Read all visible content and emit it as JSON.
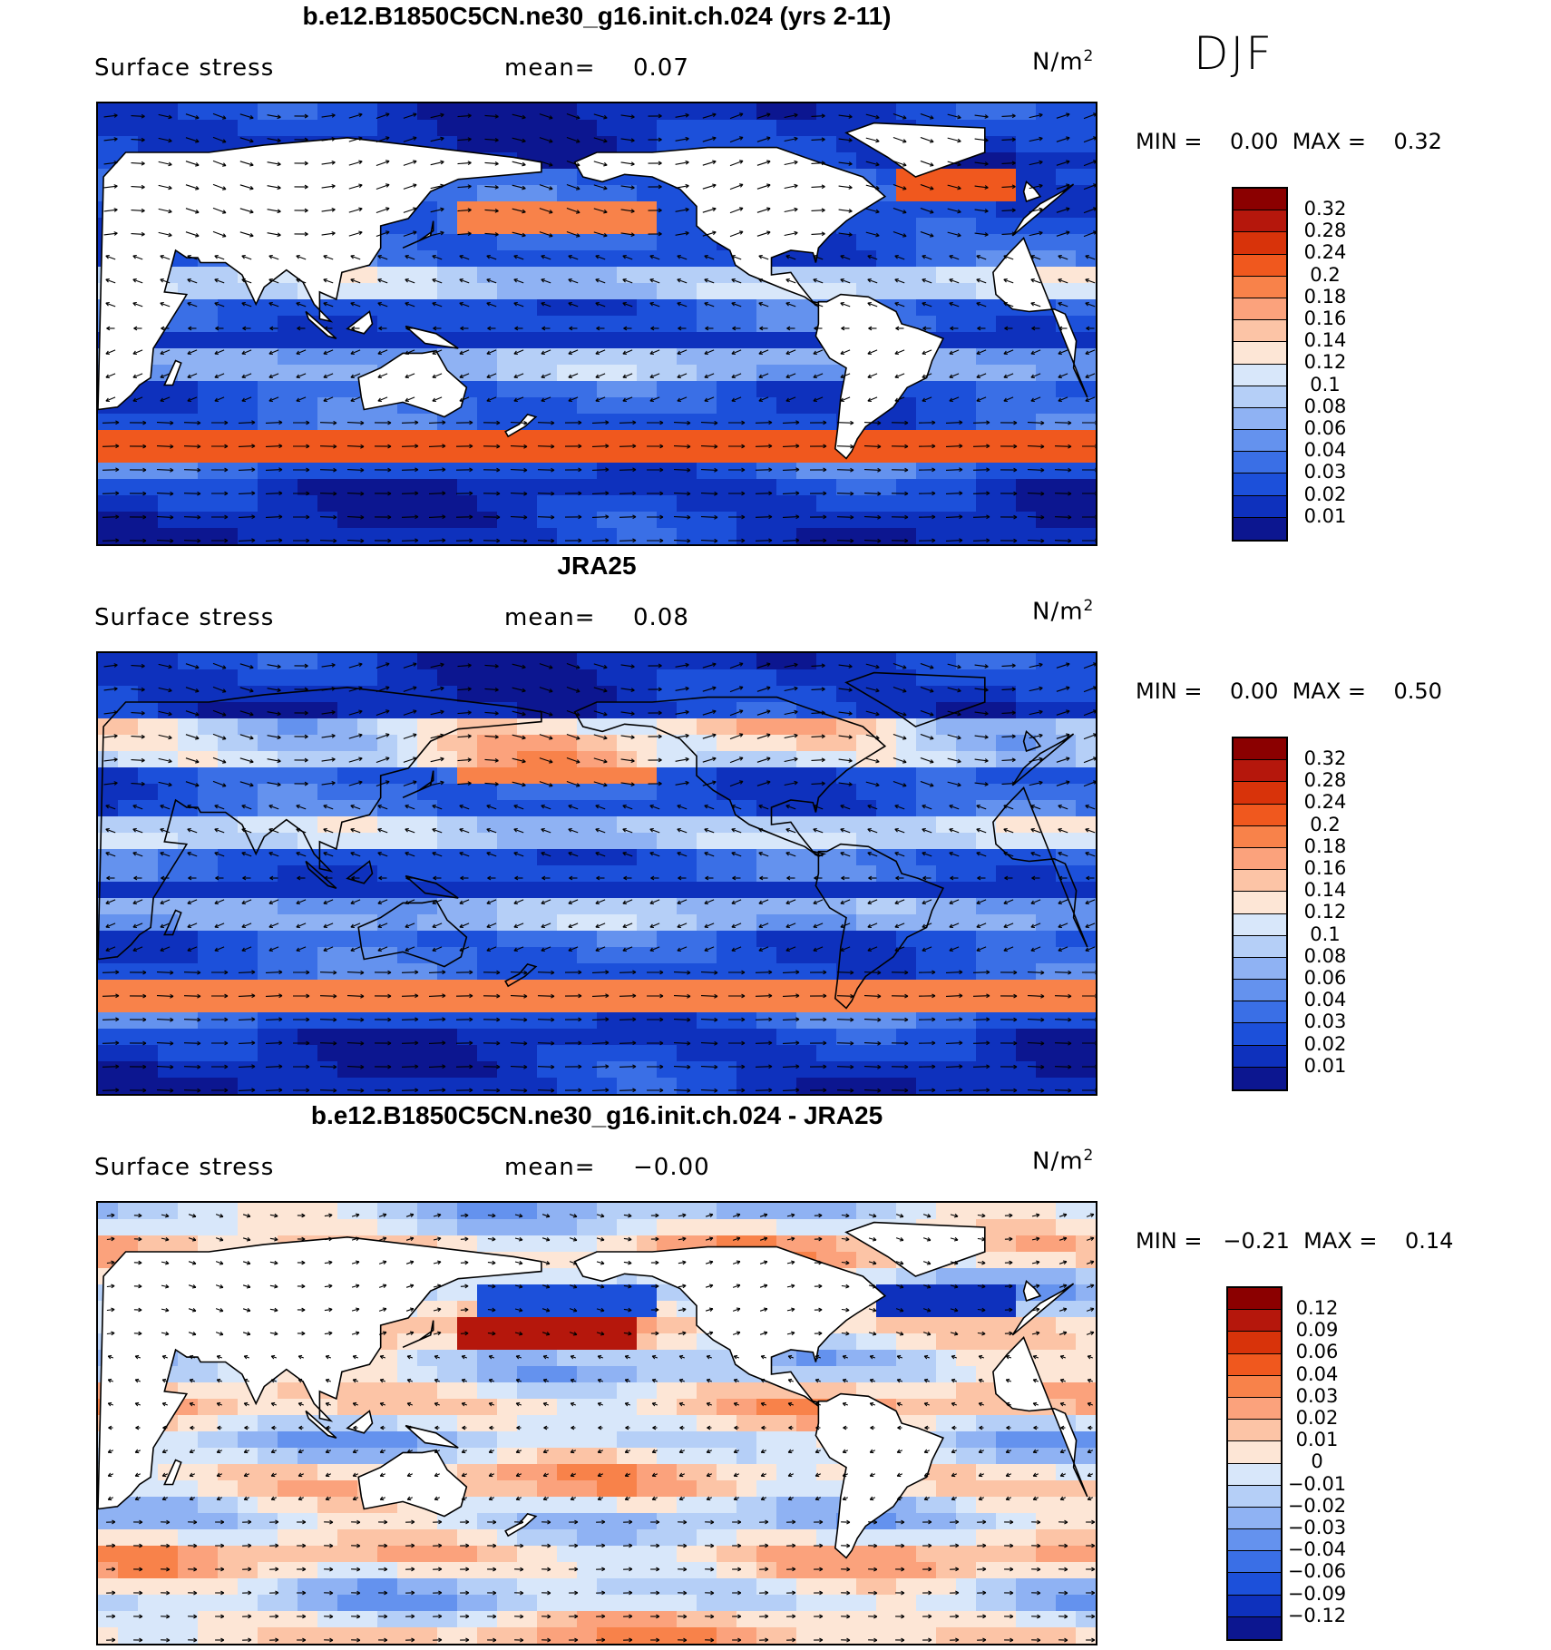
{
  "page": {
    "season": "DJF"
  },
  "panels": [
    {
      "title": "b.e12.B1850C5CN.ne30_g16.init.ch.024 (yrs 2-11)",
      "variable": "Surface stress",
      "mean_label": "mean=",
      "mean_value": "0.07",
      "units_text": "N/m",
      "units_sup": "2",
      "minmax_text": "MIN =    0.00  MAX =    0.32",
      "colorbar_labels": [
        "0.32",
        "0.28",
        "0.24",
        "0.2",
        "0.18",
        "0.16",
        "0.14",
        "0.12",
        "0.1",
        "0.08",
        "0.06",
        "0.04",
        "0.03",
        "0.02",
        "0.01"
      ],
      "colors": [
        "#8b0000",
        "#b5170c",
        "#d8330a",
        "#f0581e",
        "#f8824a",
        "#fba27c",
        "#fcc4a6",
        "#fde6d6",
        "#d8e7fa",
        "#b5cff7",
        "#8fb2f3",
        "#6492ee",
        "#3a6fe6",
        "#1c50da",
        "#0e31bd",
        "#0c1690"
      ]
    },
    {
      "title": "JRA25",
      "variable": "Surface stress",
      "mean_label": "mean=",
      "mean_value": "0.08",
      "units_text": "N/m",
      "units_sup": "2",
      "minmax_text": "MIN =    0.00  MAX =    0.50",
      "colorbar_labels": [
        "0.32",
        "0.28",
        "0.24",
        "0.2",
        "0.18",
        "0.16",
        "0.14",
        "0.12",
        "0.1",
        "0.08",
        "0.06",
        "0.04",
        "0.03",
        "0.02",
        "0.01"
      ],
      "colors": [
        "#8b0000",
        "#b5170c",
        "#d8330a",
        "#f0581e",
        "#f8824a",
        "#fba27c",
        "#fcc4a6",
        "#fde6d6",
        "#d8e7fa",
        "#b5cff7",
        "#8fb2f3",
        "#6492ee",
        "#3a6fe6",
        "#1c50da",
        "#0e31bd",
        "#0c1690"
      ]
    },
    {
      "title": "b.e12.B1850C5CN.ne30_g16.init.ch.024 - JRA25",
      "variable": "Surface stress",
      "mean_label": "mean=",
      "mean_value": "−0.00",
      "units_text": "N/m",
      "units_sup": "2",
      "minmax_text": "MIN =   −0.21  MAX =    0.14",
      "colorbar_labels": [
        "0.12",
        "0.09",
        "0.06",
        "0.04",
        "0.03",
        "0.02",
        "0.01",
        "0",
        "−0.01",
        "−0.02",
        "−0.03",
        "−0.04",
        "−0.06",
        "−0.09",
        "−0.12"
      ],
      "colors": [
        "#8b0000",
        "#b5170c",
        "#d8330a",
        "#f0581e",
        "#f8824a",
        "#fba27c",
        "#fcc4a6",
        "#fde6d6",
        "#d8e7fa",
        "#b5cff7",
        "#8fb2f3",
        "#6492ee",
        "#3a6fe6",
        "#1c50da",
        "#0e31bd",
        "#0c1690"
      ]
    }
  ]
}
